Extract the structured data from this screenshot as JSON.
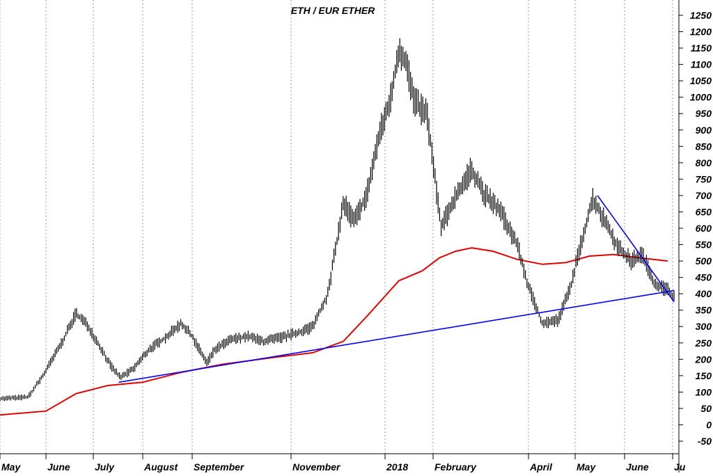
{
  "chart_data": {
    "type": "line",
    "title": "ETH / EUR ETHER",
    "xlabel": "",
    "ylabel": "",
    "ylim": [
      -50,
      1250
    ],
    "y_ticks": [
      "-50",
      "0",
      "50",
      "100",
      "150",
      "200",
      "250",
      "300",
      "350",
      "400",
      "450",
      "500",
      "550",
      "600",
      "650",
      "700",
      "750",
      "800",
      "850",
      "900",
      "950",
      "1000",
      "1050",
      "1100",
      "1150",
      "1200",
      "1250"
    ],
    "x_ticks": [
      "May",
      "June",
      "July",
      "August",
      "September",
      "November",
      "2018",
      "February",
      "April",
      "May",
      "June",
      "Ju"
    ],
    "grid": "vertical-dotted",
    "series": [
      {
        "type": "daily-high-low-bars",
        "color": "#000000",
        "x": [
          "2017-05-01",
          "2017-05-10",
          "2017-05-20",
          "2017-05-30",
          "2017-06-05",
          "2017-06-12",
          "2017-06-20",
          "2017-06-28",
          "2017-07-05",
          "2017-07-12",
          "2017-07-18",
          "2017-07-26",
          "2017-08-05",
          "2017-08-15",
          "2017-08-25",
          "2017-09-01",
          "2017-09-10",
          "2017-09-15",
          "2017-09-25",
          "2017-10-05",
          "2017-10-15",
          "2017-10-25",
          "2017-11-05",
          "2017-11-15",
          "2017-11-25",
          "2017-12-05",
          "2017-12-12",
          "2017-12-20",
          "2017-12-28",
          "2018-01-05",
          "2018-01-10",
          "2018-01-15",
          "2018-01-20",
          "2018-01-28",
          "2018-02-06",
          "2018-02-15",
          "2018-02-25",
          "2018-03-05",
          "2018-03-15",
          "2018-03-25",
          "2018-04-01",
          "2018-04-10",
          "2018-04-20",
          "2018-04-28",
          "2018-05-05",
          "2018-05-12",
          "2018-05-20",
          "2018-05-28",
          "2018-06-05",
          "2018-06-12",
          "2018-06-20",
          "2018-06-28",
          "2018-07-02"
        ],
        "values": [
          80,
          82,
          85,
          150,
          200,
          260,
          340,
          300,
          240,
          180,
          145,
          170,
          230,
          265,
          310,
          270,
          190,
          230,
          260,
          270,
          255,
          265,
          280,
          300,
          400,
          680,
          620,
          700,
          880,
          1000,
          1150,
          1100,
          980,
          950,
          600,
          700,
          780,
          700,
          650,
          550,
          420,
          310,
          320,
          420,
          560,
          690,
          620,
          540,
          500,
          520,
          430,
          410,
          390
        ]
      },
      {
        "name": "",
        "type": "moving-average",
        "color": "#e00000",
        "x": [
          "2017-05-01",
          "2017-06-01",
          "2017-06-20",
          "2017-07-10",
          "2017-08-01",
          "2017-08-25",
          "2017-09-20",
          "2017-10-20",
          "2017-11-15",
          "2017-12-05",
          "2017-12-20",
          "2018-01-10",
          "2018-01-25",
          "2018-02-05",
          "2018-02-15",
          "2018-02-25",
          "2018-03-10",
          "2018-03-25",
          "2018-04-10",
          "2018-04-25",
          "2018-05-10",
          "2018-05-25",
          "2018-06-10",
          "2018-06-28"
        ],
        "values": [
          30,
          42,
          95,
          120,
          130,
          160,
          185,
          205,
          220,
          255,
          330,
          440,
          470,
          510,
          530,
          540,
          530,
          505,
          490,
          495,
          515,
          520,
          510,
          500
        ]
      }
    ],
    "trendlines": [
      {
        "color": "#0000ff",
        "from": {
          "x": "2017-07-17",
          "y": 130
        },
        "to": {
          "x": "2018-07-02",
          "y": 410
        }
      },
      {
        "color": "#0000ff",
        "from": {
          "x": "2018-05-15",
          "y": 700
        },
        "to": {
          "x": "2018-07-02",
          "y": 375
        }
      }
    ]
  }
}
